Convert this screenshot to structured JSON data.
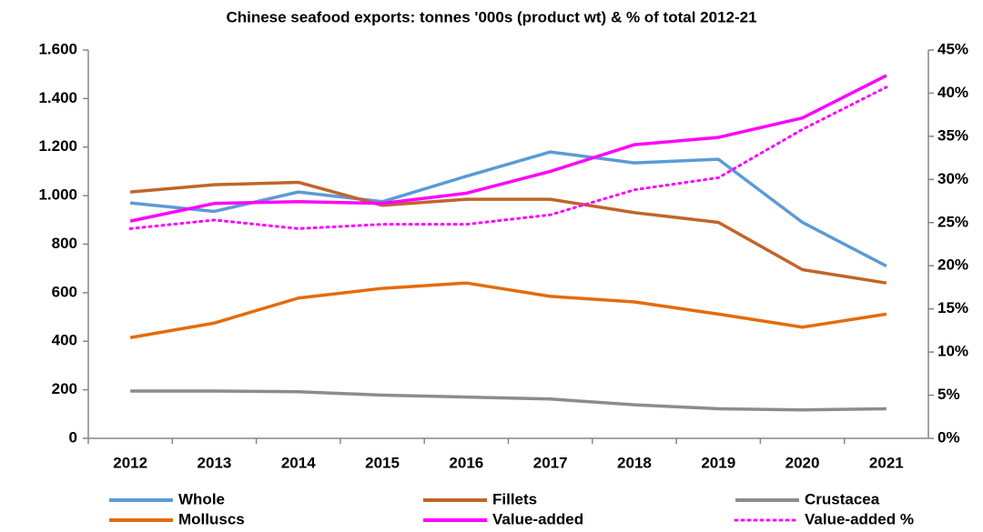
{
  "chart_data": {
    "type": "line",
    "title": "Chinese seafood exports: tonnes '000s (product wt) & % of total 2012-21",
    "categories": [
      "2012",
      "2013",
      "2014",
      "2015",
      "2016",
      "2017",
      "2018",
      "2019",
      "2020",
      "2021"
    ],
    "ylim": [
      0,
      1600
    ],
    "yticks": [
      0,
      200,
      400,
      600,
      800,
      {
        "value": 1000,
        "label": "1.000"
      },
      {
        "value": 1200,
        "label": "1.200"
      },
      {
        "value": 1400,
        "label": "1.400"
      },
      {
        "value": 1600,
        "label": "1.600"
      }
    ],
    "y2lim": [
      0,
      45
    ],
    "y2ticks": [
      {
        "value": 0,
        "label": "0%"
      },
      {
        "value": 5,
        "label": "5%"
      },
      {
        "value": 10,
        "label": "10%"
      },
      {
        "value": 15,
        "label": "15%"
      },
      {
        "value": 20,
        "label": "20%"
      },
      {
        "value": 25,
        "label": "25%"
      },
      {
        "value": 30,
        "label": "30%"
      },
      {
        "value": 35,
        "label": "35%"
      },
      {
        "value": 40,
        "label": "40%"
      },
      {
        "value": 45,
        "label": "45%"
      }
    ],
    "grid": false,
    "legend": "bottom",
    "series": [
      {
        "name": "Whole",
        "color": "#5b9bd5",
        "values": [
          970,
          935,
          1015,
          975,
          1080,
          1180,
          1135,
          1150,
          890,
          710
        ]
      },
      {
        "name": "Fillets",
        "color": "#c0652b",
        "values": [
          1015,
          1045,
          1055,
          960,
          985,
          985,
          930,
          890,
          695,
          640
        ]
      },
      {
        "name": "Crustacea",
        "color": "#8c8c8c",
        "values": [
          195,
          195,
          192,
          178,
          170,
          162,
          138,
          122,
          117,
          122
        ]
      },
      {
        "name": "Molluscs",
        "color": "#e36c09",
        "values": [
          415,
          475,
          578,
          618,
          640,
          585,
          562,
          512,
          458,
          512
        ]
      },
      {
        "name": "Value-added",
        "color": "#ff00ff",
        "values": [
          895,
          968,
          975,
          968,
          1010,
          1100,
          1210,
          1240,
          1320,
          1495
        ]
      },
      {
        "name": "Value-added %",
        "color": "#ff00ff",
        "dash": "dotted",
        "axis": "y2",
        "values": [
          24.3,
          25.3,
          24.3,
          24.8,
          24.8,
          25.9,
          28.8,
          30.2,
          35.8,
          40.7
        ]
      }
    ]
  }
}
